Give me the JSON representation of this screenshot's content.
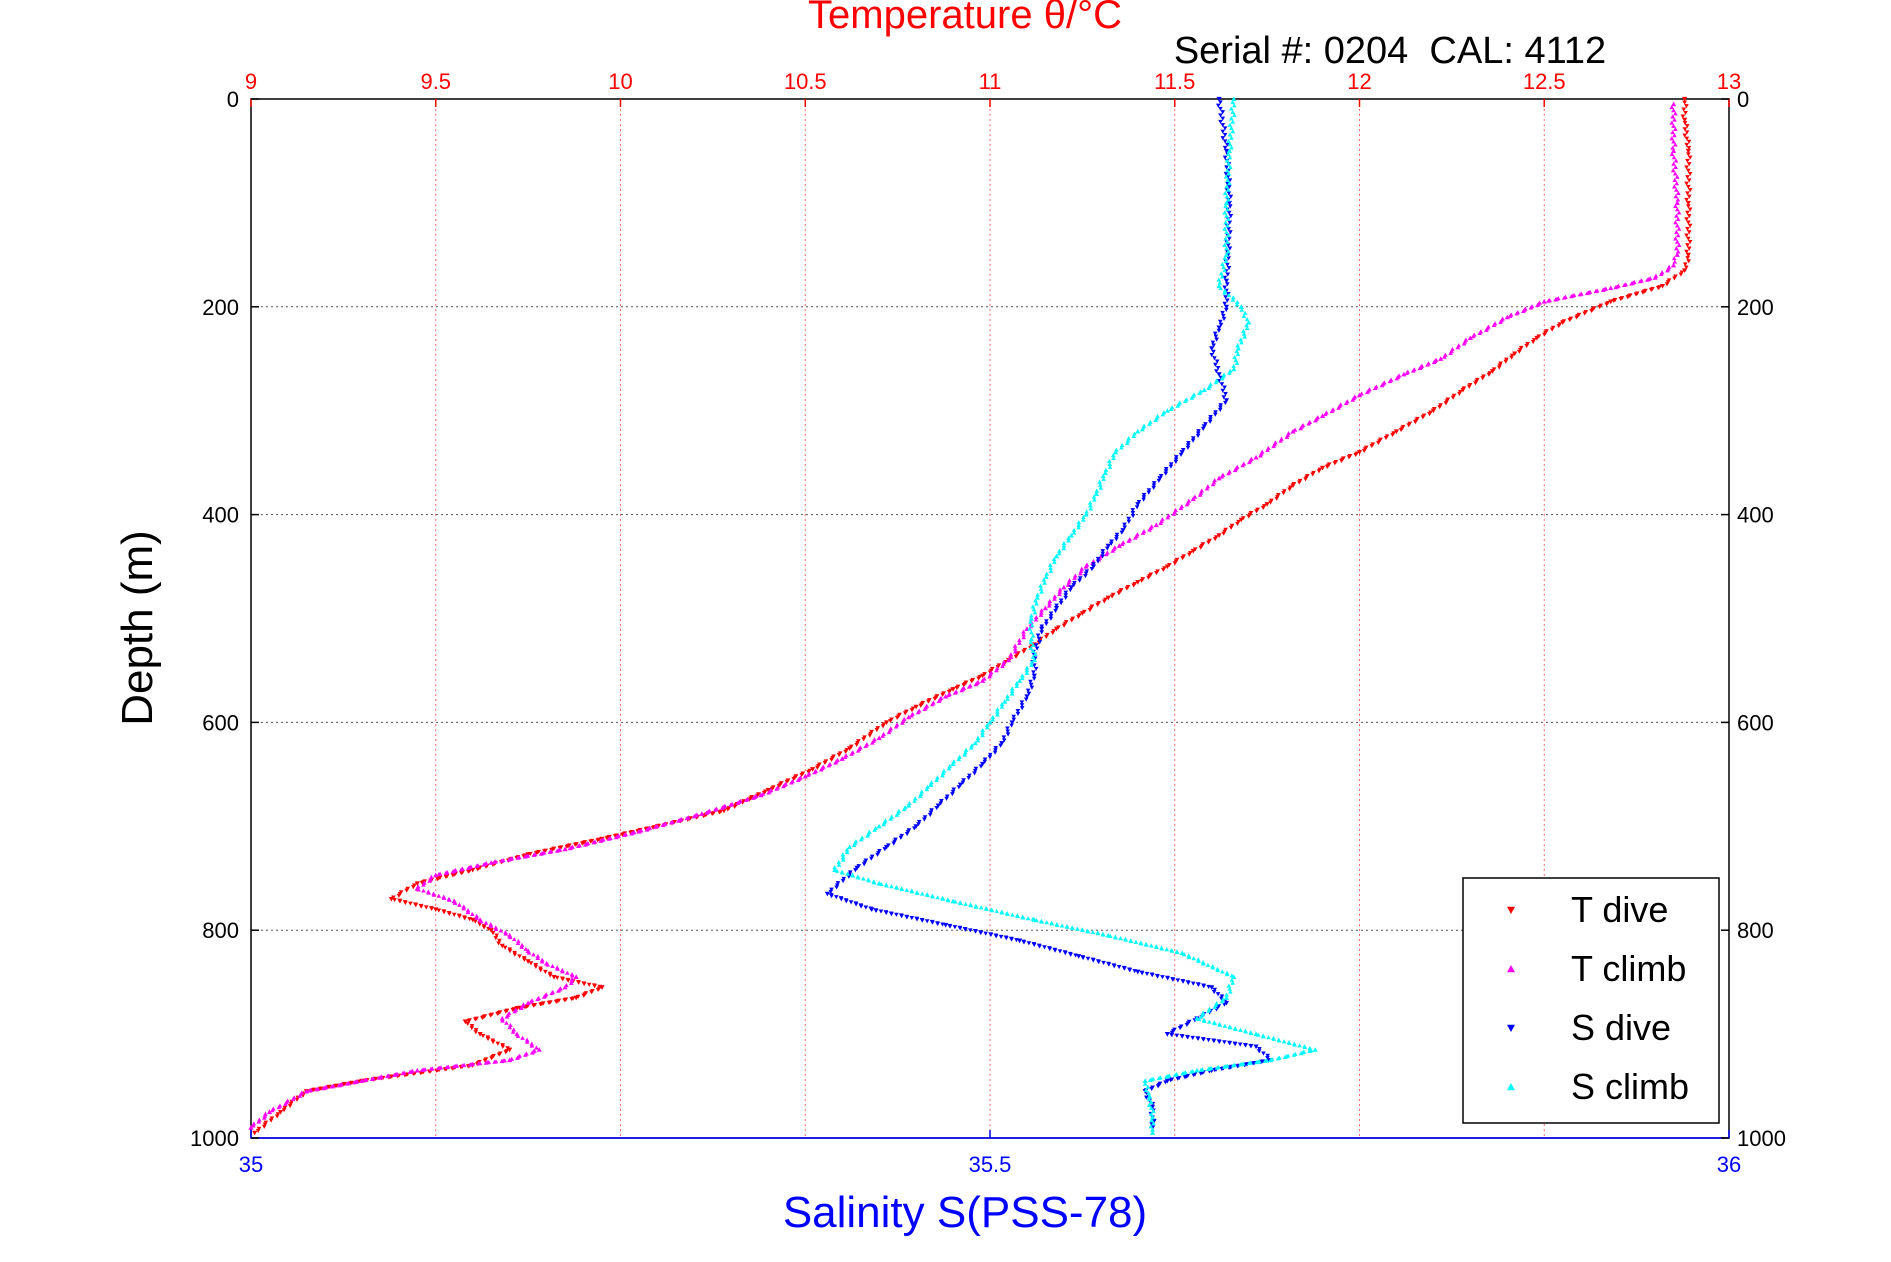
{
  "chart_data": {
    "type": "scatter",
    "title": "Temperature θ/°C",
    "annotation": "Serial #: 0204  CAL: 4112",
    "xlabel": "Salinity S(PSS-78)",
    "ylabel": "Depth (m)",
    "top_axis": {
      "range": [
        9,
        13
      ],
      "ticks": [
        "9",
        "9.5",
        "10",
        "10.5",
        "11",
        "11.5",
        "12",
        "12.5",
        "13"
      ],
      "color": "#ff0000",
      "grid": true
    },
    "bottom_axis": {
      "range": [
        35,
        36
      ],
      "ticks": [
        "35",
        "35.5",
        "36"
      ],
      "color": "#0000ff"
    },
    "y_axis": {
      "range": [
        0,
        1000
      ],
      "reversed": true,
      "ticks": [
        "0",
        "200",
        "400",
        "600",
        "800",
        "1000"
      ],
      "grid": true
    },
    "legend": {
      "placement": "bottom-right"
    },
    "series": [
      {
        "name": "T dive",
        "axis": "temperature",
        "color": "#ff0000",
        "marker": "triangle-down",
        "points": [
          [
            12.88,
            0
          ],
          [
            12.88,
            20
          ],
          [
            12.89,
            50
          ],
          [
            12.89,
            100
          ],
          [
            12.89,
            150
          ],
          [
            12.88,
            165
          ],
          [
            12.82,
            180
          ],
          [
            12.68,
            195
          ],
          [
            12.55,
            215
          ],
          [
            12.48,
            230
          ],
          [
            12.42,
            245
          ],
          [
            12.36,
            262
          ],
          [
            12.28,
            280
          ],
          [
            12.2,
            300
          ],
          [
            12.1,
            320
          ],
          [
            12.0,
            340
          ],
          [
            11.9,
            355
          ],
          [
            11.82,
            372
          ],
          [
            11.75,
            390
          ],
          [
            11.68,
            405
          ],
          [
            11.62,
            420
          ],
          [
            11.55,
            435
          ],
          [
            11.48,
            450
          ],
          [
            11.4,
            465
          ],
          [
            11.32,
            480
          ],
          [
            11.25,
            495
          ],
          [
            11.18,
            510
          ],
          [
            11.12,
            525
          ],
          [
            11.05,
            540
          ],
          [
            10.98,
            555
          ],
          [
            10.9,
            568
          ],
          [
            10.8,
            585
          ],
          [
            10.72,
            600
          ],
          [
            10.62,
            625
          ],
          [
            10.52,
            645
          ],
          [
            10.4,
            665
          ],
          [
            10.28,
            685
          ],
          [
            10.1,
            700
          ],
          [
            9.95,
            712
          ],
          [
            9.75,
            727
          ],
          [
            9.6,
            742
          ],
          [
            9.45,
            755
          ],
          [
            9.38,
            770
          ],
          [
            9.5,
            780
          ],
          [
            9.6,
            790
          ],
          [
            9.65,
            800
          ],
          [
            9.68,
            815
          ],
          [
            9.75,
            830
          ],
          [
            9.82,
            845
          ],
          [
            9.95,
            855
          ],
          [
            9.88,
            865
          ],
          [
            9.72,
            875
          ],
          [
            9.58,
            888
          ],
          [
            9.62,
            900
          ],
          [
            9.7,
            915
          ],
          [
            9.6,
            930
          ],
          [
            9.3,
            945
          ],
          [
            9.15,
            955
          ],
          [
            9.08,
            975
          ],
          [
            9.01,
            995
          ]
        ]
      },
      {
        "name": "T climb",
        "axis": "temperature",
        "color": "#ff00ff",
        "marker": "triangle-up",
        "points": [
          [
            12.85,
            5
          ],
          [
            12.85,
            50
          ],
          [
            12.86,
            100
          ],
          [
            12.86,
            150
          ],
          [
            12.85,
            160
          ],
          [
            12.8,
            172
          ],
          [
            12.68,
            182
          ],
          [
            12.5,
            195
          ],
          [
            12.4,
            210
          ],
          [
            12.3,
            230
          ],
          [
            12.22,
            250
          ],
          [
            12.12,
            265
          ],
          [
            12.0,
            285
          ],
          [
            11.9,
            305
          ],
          [
            11.82,
            320
          ],
          [
            11.72,
            345
          ],
          [
            11.62,
            365
          ],
          [
            11.55,
            385
          ],
          [
            11.45,
            410
          ],
          [
            11.35,
            430
          ],
          [
            11.26,
            450
          ],
          [
            11.2,
            470
          ],
          [
            11.15,
            490
          ],
          [
            11.1,
            510
          ],
          [
            11.05,
            540
          ],
          [
            10.98,
            560
          ],
          [
            10.88,
            575
          ],
          [
            10.78,
            595
          ],
          [
            10.7,
            615
          ],
          [
            10.6,
            635
          ],
          [
            10.5,
            652
          ],
          [
            10.38,
            670
          ],
          [
            10.22,
            688
          ],
          [
            10.05,
            705
          ],
          [
            9.85,
            722
          ],
          [
            9.65,
            735
          ],
          [
            9.5,
            747
          ],
          [
            9.45,
            760
          ],
          [
            9.55,
            772
          ],
          [
            9.62,
            790
          ],
          [
            9.7,
            805
          ],
          [
            9.75,
            820
          ],
          [
            9.8,
            832
          ],
          [
            9.88,
            845
          ],
          [
            9.85,
            855
          ],
          [
            9.75,
            870
          ],
          [
            9.68,
            885
          ],
          [
            9.72,
            900
          ],
          [
            9.78,
            915
          ],
          [
            9.7,
            925
          ],
          [
            9.45,
            935
          ],
          [
            9.3,
            945
          ],
          [
            9.15,
            955
          ],
          [
            9.05,
            975
          ],
          [
            9.0,
            990
          ]
        ]
      },
      {
        "name": "S dive",
        "axis": "salinity",
        "color": "#0000ff",
        "marker": "triangle-down",
        "points": [
          [
            35.655,
            0
          ],
          [
            35.66,
            50
          ],
          [
            35.662,
            100
          ],
          [
            35.661,
            150
          ],
          [
            35.66,
            175
          ],
          [
            35.66,
            200
          ],
          [
            35.655,
            220
          ],
          [
            35.65,
            240
          ],
          [
            35.655,
            265
          ],
          [
            35.66,
            290
          ],
          [
            35.645,
            315
          ],
          [
            35.63,
            340
          ],
          [
            35.615,
            365
          ],
          [
            35.6,
            390
          ],
          [
            35.59,
            415
          ],
          [
            35.58,
            430
          ],
          [
            35.57,
            450
          ],
          [
            35.555,
            470
          ],
          [
            35.545,
            490
          ],
          [
            35.535,
            510
          ],
          [
            35.53,
            535
          ],
          [
            35.53,
            555
          ],
          [
            35.525,
            575
          ],
          [
            35.515,
            600
          ],
          [
            35.508,
            620
          ],
          [
            35.495,
            640
          ],
          [
            35.48,
            660
          ],
          [
            35.465,
            680
          ],
          [
            35.45,
            700
          ],
          [
            35.43,
            720
          ],
          [
            35.41,
            740
          ],
          [
            35.39,
            765
          ],
          [
            35.42,
            780
          ],
          [
            35.47,
            795
          ],
          [
            35.52,
            810
          ],
          [
            35.56,
            825
          ],
          [
            35.6,
            840
          ],
          [
            35.65,
            855
          ],
          [
            35.66,
            870
          ],
          [
            35.64,
            885
          ],
          [
            35.62,
            900
          ],
          [
            35.68,
            912
          ],
          [
            35.69,
            925
          ],
          [
            35.65,
            935
          ],
          [
            35.62,
            945
          ],
          [
            35.605,
            955
          ],
          [
            35.61,
            970
          ],
          [
            35.61,
            990
          ]
        ]
      },
      {
        "name": "S climb",
        "axis": "salinity",
        "color": "#00ffff",
        "marker": "triangle-up",
        "points": [
          [
            35.665,
            0
          ],
          [
            35.662,
            50
          ],
          [
            35.66,
            100
          ],
          [
            35.66,
            150
          ],
          [
            35.655,
            180
          ],
          [
            35.67,
            200
          ],
          [
            35.675,
            215
          ],
          [
            35.668,
            240
          ],
          [
            35.665,
            260
          ],
          [
            35.645,
            280
          ],
          [
            35.62,
            300
          ],
          [
            35.6,
            320
          ],
          [
            35.585,
            340
          ],
          [
            35.578,
            360
          ],
          [
            35.572,
            380
          ],
          [
            35.565,
            400
          ],
          [
            35.555,
            420
          ],
          [
            35.545,
            440
          ],
          [
            35.538,
            460
          ],
          [
            35.532,
            480
          ],
          [
            35.528,
            500
          ],
          [
            35.528,
            520
          ],
          [
            35.53,
            540
          ],
          [
            35.52,
            560
          ],
          [
            35.51,
            580
          ],
          [
            35.5,
            600
          ],
          [
            35.49,
            620
          ],
          [
            35.475,
            640
          ],
          [
            35.46,
            660
          ],
          [
            35.445,
            680
          ],
          [
            35.425,
            700
          ],
          [
            35.405,
            720
          ],
          [
            35.395,
            742
          ],
          [
            35.425,
            755
          ],
          [
            35.475,
            772
          ],
          [
            35.53,
            790
          ],
          [
            35.58,
            805
          ],
          [
            35.63,
            822
          ],
          [
            35.665,
            845
          ],
          [
            35.66,
            865
          ],
          [
            35.64,
            885
          ],
          [
            35.68,
            900
          ],
          [
            35.72,
            915
          ],
          [
            35.69,
            925
          ],
          [
            35.64,
            935
          ],
          [
            35.605,
            945
          ],
          [
            35.608,
            960
          ],
          [
            35.61,
            980
          ],
          [
            35.61,
            995
          ]
        ]
      }
    ]
  }
}
